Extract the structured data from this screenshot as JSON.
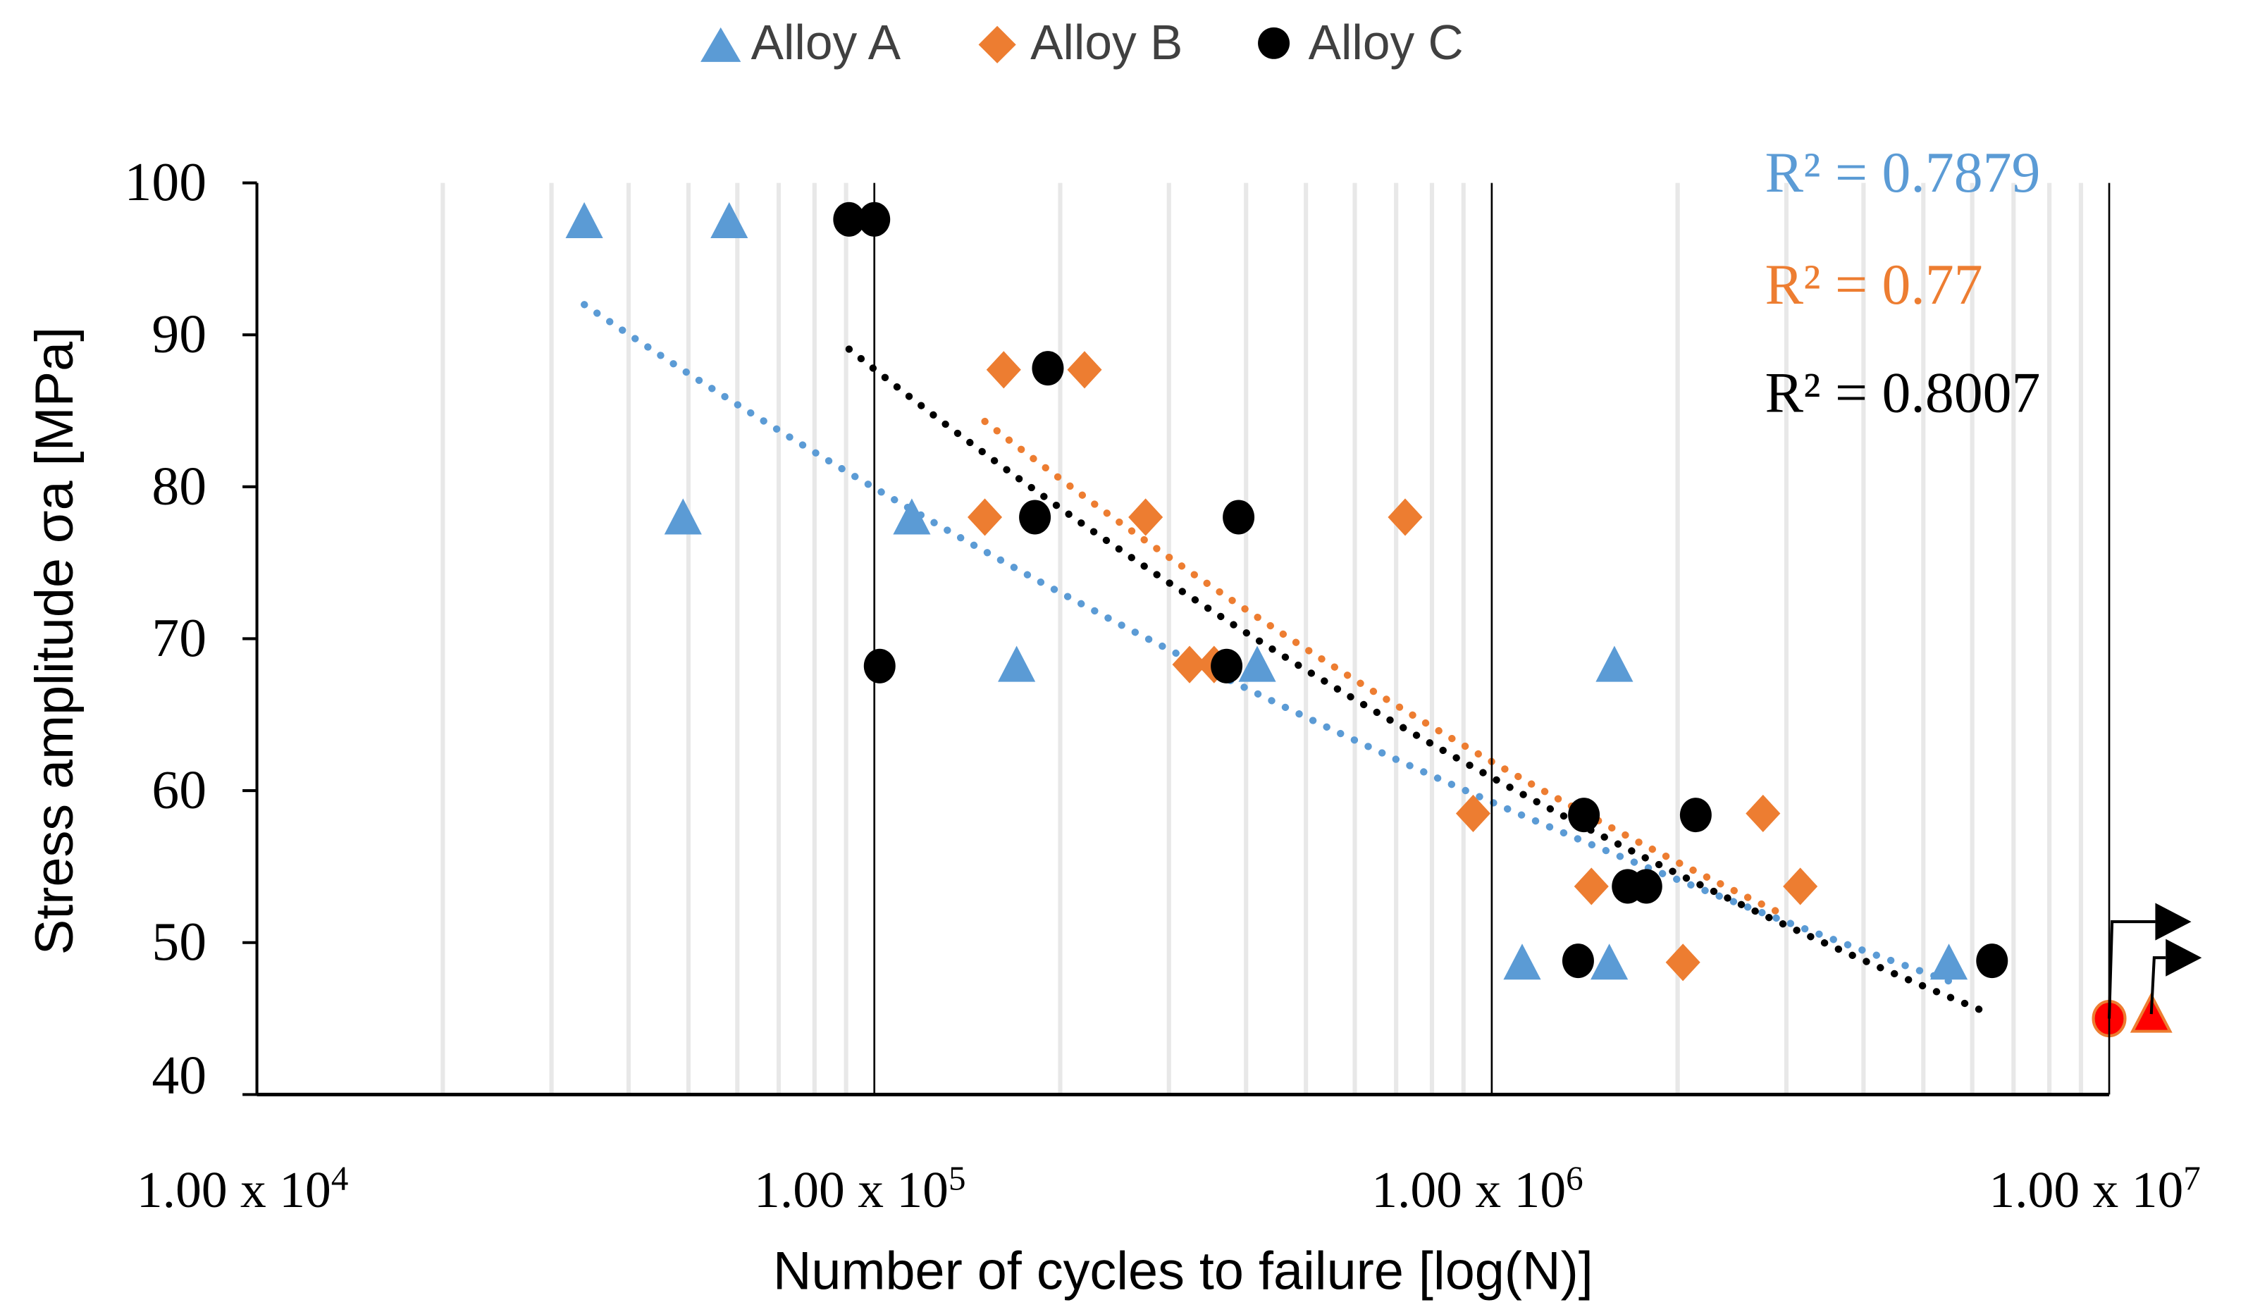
{
  "chart_data": {
    "type": "scatter",
    "xscale": "log",
    "xlabel": "Number of cycles to failure [log(N)]",
    "ylabel": "Stress amplitude σa [MPa]",
    "xlim": [
      10000,
      10000000
    ],
    "ylim": [
      40,
      100
    ],
    "yticks": [
      40,
      50,
      60,
      70,
      80,
      90,
      100
    ],
    "xticks": [
      {
        "value": 10000,
        "mantissa": "1.00 x 10",
        "exp": "4"
      },
      {
        "value": 100000,
        "mantissa": "1.00 x 10",
        "exp": "5"
      },
      {
        "value": 1000000,
        "mantissa": "1.00 x 10",
        "exp": "6"
      },
      {
        "value": 10000000,
        "mantissa": "1.00 x 10",
        "exp": "7"
      }
    ],
    "grid": "vertical minor gridlines",
    "legend_position": "top",
    "series": [
      {
        "name": "Alloy A",
        "marker": "triangle",
        "color": "#5B9BD5",
        "points": [
          [
            33900,
            97.5
          ],
          [
            58200,
            97.5
          ],
          [
            49000,
            78
          ],
          [
            115000,
            78
          ],
          [
            170000,
            68.3
          ],
          [
            417000,
            68.3
          ],
          [
            1580000,
            68.3
          ],
          [
            1120000,
            48.7
          ],
          [
            1550000,
            48.7
          ],
          [
            5500000,
            48.7
          ]
        ],
        "trendline": {
          "type": "power",
          "a": 357,
          "b": -0.13,
          "xrange": [
            33900,
            5500000
          ],
          "r2_label": "R² = 0.7879"
        }
      },
      {
        "name": "Alloy B",
        "marker": "diamond",
        "color": "#ED7D31",
        "points": [
          [
            162000,
            87.7
          ],
          [
            219000,
            87.7
          ],
          [
            151000,
            78
          ],
          [
            275000,
            78
          ],
          [
            724000,
            78
          ],
          [
            324000,
            68.3
          ],
          [
            355000,
            68.3
          ],
          [
            933000,
            58.5
          ],
          [
            1450000,
            53.7
          ],
          [
            2750000,
            58.5
          ],
          [
            3160000,
            53.7
          ],
          [
            2040000,
            48.7
          ]
        ],
        "trendline": {
          "type": "power",
          "a": 591,
          "b": -0.1633,
          "xrange": [
            151000,
            3000000
          ],
          "r2_label": "R² = 0.77"
        }
      },
      {
        "name": "Alloy C",
        "marker": "circle",
        "color": "#000000",
        "points": [
          [
            91000,
            97.6
          ],
          [
            100000,
            97.6
          ],
          [
            191000,
            87.8
          ],
          [
            182000,
            78
          ],
          [
            389000,
            78
          ],
          [
            102000,
            68.2
          ],
          [
            372000,
            68.2
          ],
          [
            1410000,
            58.4
          ],
          [
            1660000,
            53.7
          ],
          [
            1780000,
            53.7
          ],
          [
            2140000,
            58.4
          ],
          [
            1380000,
            48.8
          ],
          [
            6460000,
            48.8
          ]
        ],
        "trendline": {
          "type": "power",
          "a": 546,
          "b": -0.1588,
          "xrange": [
            91000,
            6460000
          ],
          "r2_label": "R² = 0.8007"
        }
      }
    ],
    "runouts": [
      {
        "series": "Alloy C",
        "marker": "circle",
        "x": 10000000,
        "y": 45,
        "color": "#FF0000"
      },
      {
        "series": "Alloy A",
        "marker": "triangle",
        "x": 11700000,
        "y": 45.3,
        "color": "#FF0000"
      }
    ]
  }
}
